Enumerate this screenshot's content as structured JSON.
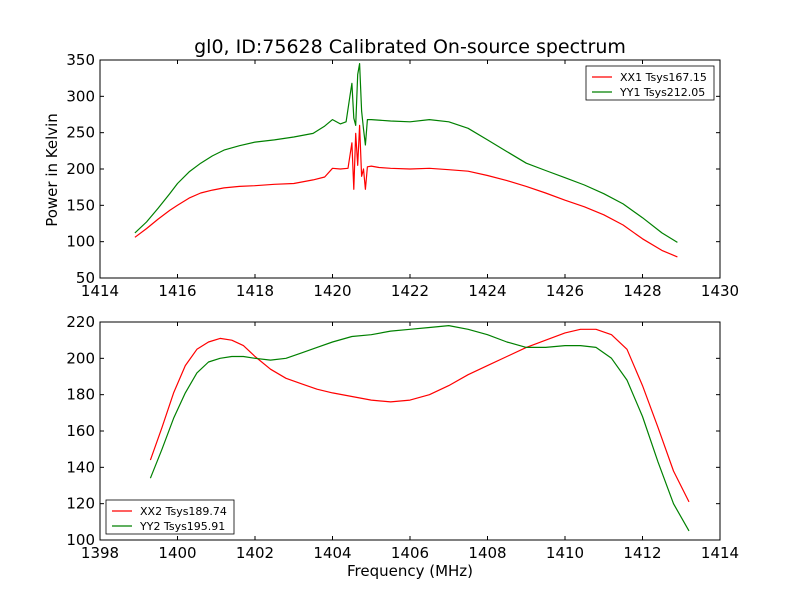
{
  "figure": {
    "title": "gl0, ID:75628 Calibrated On-source spectrum",
    "xlabel": "Frequency (MHz)",
    "ylabel": "Power in Kelvin"
  },
  "colors": {
    "red": "#ff0000",
    "green": "#008000"
  },
  "chart_data": [
    {
      "type": "line",
      "title": "gl0, ID:75628 Calibrated On-source spectrum",
      "xlabel": "",
      "ylabel": "Power in Kelvin",
      "xlim": [
        1414,
        1430
      ],
      "ylim": [
        50,
        350
      ],
      "xticks": [
        1414,
        1416,
        1418,
        1420,
        1422,
        1424,
        1426,
        1428,
        1430
      ],
      "yticks": [
        50,
        100,
        150,
        200,
        250,
        300,
        350
      ],
      "grid": false,
      "legend_position": "top-right",
      "series": [
        {
          "name": "XX1 Tsys167.15",
          "color": "#ff0000",
          "x": [
            1414.9,
            1415.2,
            1415.5,
            1415.8,
            1416.0,
            1416.3,
            1416.6,
            1416.9,
            1417.2,
            1417.6,
            1418.0,
            1418.5,
            1419.0,
            1419.5,
            1419.8,
            1420.0,
            1420.2,
            1420.4,
            1420.5,
            1420.55,
            1420.6,
            1420.65,
            1420.7,
            1420.75,
            1420.8,
            1420.85,
            1420.9,
            1421.0,
            1421.2,
            1421.5,
            1422.0,
            1422.5,
            1423.0,
            1423.5,
            1424.0,
            1424.5,
            1425.0,
            1425.5,
            1426.0,
            1426.5,
            1427.0,
            1427.5,
            1428.0,
            1428.5,
            1428.9
          ],
          "y": [
            106,
            118,
            131,
            143,
            150,
            160,
            167,
            171,
            174,
            176,
            177,
            179,
            180,
            185,
            189,
            201,
            200,
            201,
            236,
            172,
            249,
            205,
            260,
            190,
            200,
            172,
            203,
            204,
            202,
            201,
            200,
            201,
            199,
            197,
            191,
            184,
            176,
            167,
            157,
            148,
            137,
            123,
            104,
            88,
            79
          ]
        },
        {
          "name": "YY1 Tsys212.05",
          "color": "#008000",
          "x": [
            1414.9,
            1415.2,
            1415.5,
            1415.8,
            1416.0,
            1416.3,
            1416.6,
            1416.9,
            1417.2,
            1417.6,
            1418.0,
            1418.5,
            1419.0,
            1419.5,
            1419.8,
            1420.0,
            1420.2,
            1420.35,
            1420.45,
            1420.5,
            1420.55,
            1420.6,
            1420.65,
            1420.7,
            1420.75,
            1420.8,
            1420.85,
            1420.9,
            1421.0,
            1421.5,
            1422.0,
            1422.5,
            1423.0,
            1423.5,
            1424.0,
            1424.5,
            1425.0,
            1425.5,
            1426.0,
            1426.5,
            1427.0,
            1427.5,
            1428.0,
            1428.5,
            1428.9
          ],
          "y": [
            112,
            127,
            146,
            166,
            180,
            196,
            208,
            218,
            226,
            232,
            237,
            240,
            244,
            249,
            259,
            268,
            262,
            265,
            300,
            318,
            270,
            260,
            330,
            345,
            280,
            255,
            233,
            268,
            268,
            266,
            265,
            268,
            265,
            256,
            240,
            224,
            208,
            198,
            188,
            178,
            166,
            152,
            133,
            112,
            99
          ]
        }
      ]
    },
    {
      "type": "line",
      "title": "",
      "xlabel": "Frequency (MHz)",
      "ylabel": "",
      "xlim": [
        1398,
        1414
      ],
      "ylim": [
        100,
        220
      ],
      "xticks": [
        1398,
        1400,
        1402,
        1404,
        1406,
        1408,
        1410,
        1412,
        1414
      ],
      "yticks": [
        100,
        120,
        140,
        160,
        180,
        200,
        220
      ],
      "grid": false,
      "legend_position": "bottom-left",
      "series": [
        {
          "name": "XX2 Tsys189.74",
          "color": "#ff0000",
          "x": [
            1399.3,
            1399.6,
            1399.9,
            1400.2,
            1400.5,
            1400.8,
            1401.1,
            1401.4,
            1401.7,
            1402.0,
            1402.4,
            1402.8,
            1403.2,
            1403.6,
            1404.0,
            1404.5,
            1405.0,
            1405.5,
            1406.0,
            1406.5,
            1407.0,
            1407.5,
            1408.0,
            1408.5,
            1409.0,
            1409.5,
            1410.0,
            1410.4,
            1410.8,
            1411.2,
            1411.6,
            1412.0,
            1412.4,
            1412.8,
            1413.2
          ],
          "y": [
            144,
            162,
            181,
            196,
            205,
            209,
            211,
            210,
            207,
            201,
            194,
            189,
            186,
            183,
            181,
            179,
            177,
            176,
            177,
            180,
            185,
            191,
            196,
            201,
            206,
            210,
            214,
            216,
            216,
            213,
            205,
            185,
            162,
            138,
            121
          ]
        },
        {
          "name": "YY2 Tsys195.91",
          "color": "#008000",
          "x": [
            1399.3,
            1399.6,
            1399.9,
            1400.2,
            1400.5,
            1400.8,
            1401.1,
            1401.4,
            1401.7,
            1402.0,
            1402.4,
            1402.8,
            1403.2,
            1403.6,
            1404.0,
            1404.5,
            1405.0,
            1405.5,
            1406.0,
            1406.5,
            1407.0,
            1407.5,
            1408.0,
            1408.5,
            1409.0,
            1409.5,
            1410.0,
            1410.4,
            1410.8,
            1411.2,
            1411.6,
            1412.0,
            1412.4,
            1412.8,
            1413.2
          ],
          "y": [
            134,
            150,
            167,
            181,
            192,
            198,
            200,
            201,
            201,
            200,
            199,
            200,
            203,
            206,
            209,
            212,
            213,
            215,
            216,
            217,
            218,
            216,
            213,
            209,
            206,
            206,
            207,
            207,
            206,
            200,
            188,
            168,
            143,
            120,
            105
          ]
        }
      ]
    }
  ]
}
